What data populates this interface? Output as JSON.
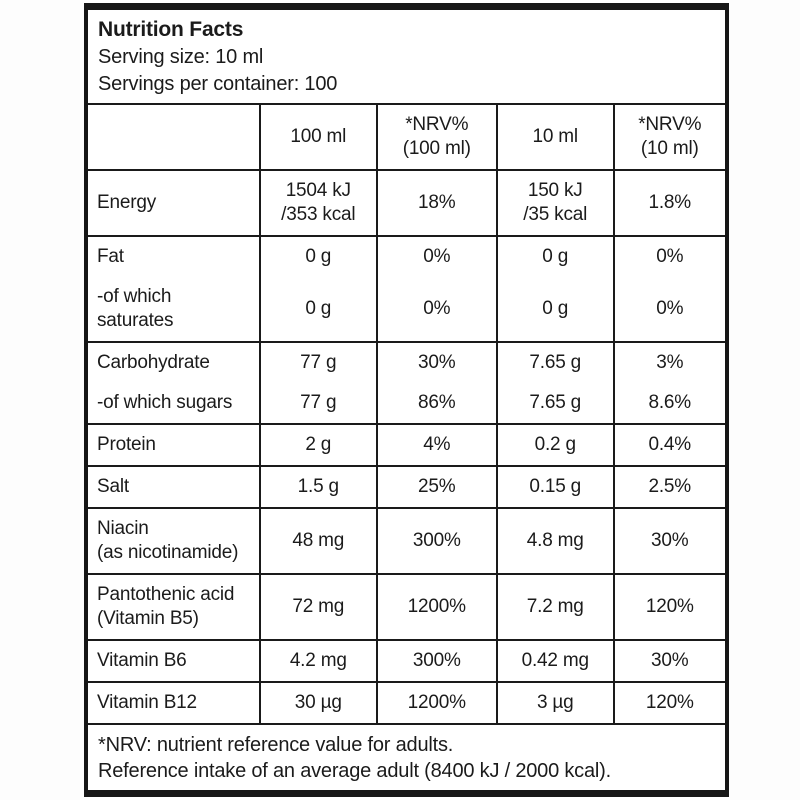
{
  "label": {
    "title": "Nutrition Facts",
    "serving_size": "Serving size: 10 ml",
    "servings_per_container": "Servings per container: 100"
  },
  "table": {
    "column_headers": [
      {
        "lines": [
          "100 ml"
        ]
      },
      {
        "lines": [
          "*NRV%",
          "(100 ml)"
        ]
      },
      {
        "lines": [
          "10 ml"
        ]
      },
      {
        "lines": [
          "*NRV%",
          "(10 ml)"
        ]
      }
    ],
    "rows": [
      {
        "label": [
          "Energy"
        ],
        "values": [
          [
            "1504 kJ",
            "/353 kcal"
          ],
          [
            "18%"
          ],
          [
            "150 kJ",
            "/35 kcal"
          ],
          [
            "1.8%"
          ]
        ],
        "sub": false,
        "group_with_next": false
      },
      {
        "label": [
          "Fat"
        ],
        "values": [
          [
            "0 g"
          ],
          [
            "0%"
          ],
          [
            "0 g"
          ],
          [
            "0%"
          ]
        ],
        "sub": false,
        "group_with_next": true
      },
      {
        "label": [
          "-of which",
          "saturates"
        ],
        "values": [
          [
            "0 g"
          ],
          [
            "0%"
          ],
          [
            "0 g"
          ],
          [
            "0%"
          ]
        ],
        "sub": true,
        "group_with_next": false
      },
      {
        "label": [
          "Carbohydrate"
        ],
        "values": [
          [
            "77 g"
          ],
          [
            "30%"
          ],
          [
            "7.65 g"
          ],
          [
            "3%"
          ]
        ],
        "sub": false,
        "group_with_next": true
      },
      {
        "label": [
          "-of which sugars"
        ],
        "values": [
          [
            "77 g"
          ],
          [
            "86%"
          ],
          [
            "7.65 g"
          ],
          [
            "8.6%"
          ]
        ],
        "sub": true,
        "group_with_next": false
      },
      {
        "label": [
          "Protein"
        ],
        "values": [
          [
            "2 g"
          ],
          [
            "4%"
          ],
          [
            "0.2 g"
          ],
          [
            "0.4%"
          ]
        ],
        "sub": false,
        "group_with_next": false
      },
      {
        "label": [
          "Salt"
        ],
        "values": [
          [
            "1.5 g"
          ],
          [
            "25%"
          ],
          [
            "0.15 g"
          ],
          [
            "2.5%"
          ]
        ],
        "sub": false,
        "group_with_next": false
      },
      {
        "label": [
          "Niacin",
          "(as nicotinamide)"
        ],
        "values": [
          [
            "48 mg"
          ],
          [
            "300%"
          ],
          [
            "4.8 mg"
          ],
          [
            "30%"
          ]
        ],
        "sub": false,
        "group_with_next": false
      },
      {
        "label": [
          "Pantothenic acid",
          "(Vitamin B5)"
        ],
        "values": [
          [
            "72 mg"
          ],
          [
            "1200%"
          ],
          [
            "7.2 mg"
          ],
          [
            "120%"
          ]
        ],
        "sub": false,
        "group_with_next": false
      },
      {
        "label": [
          "Vitamin B6"
        ],
        "values": [
          [
            "4.2 mg"
          ],
          [
            "300%"
          ],
          [
            "0.42 mg"
          ],
          [
            "30%"
          ]
        ],
        "sub": false,
        "group_with_next": false
      },
      {
        "label": [
          "Vitamin B12"
        ],
        "values": [
          [
            "30 µg"
          ],
          [
            "1200%"
          ],
          [
            "3 µg"
          ],
          [
            "120%"
          ]
        ],
        "sub": false,
        "group_with_next": false
      }
    ]
  },
  "footnotes": [
    "*NRV: nutrient reference value for adults.",
    "Reference intake of an average adult (8400 kJ / 2000 kcal)."
  ],
  "colors": {
    "border": "#1a1a1a",
    "text": "#1b1b1b",
    "background": "#ffffff"
  }
}
